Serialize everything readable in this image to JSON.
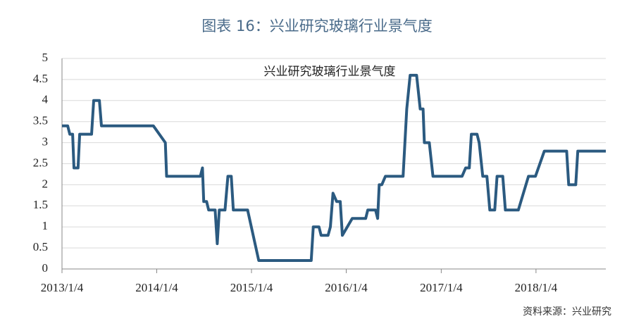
{
  "chart_data": {
    "type": "line",
    "title": "图表 16：兴业研究玻璃行业景气度",
    "source": "资料来源：兴业研究",
    "grid": true,
    "xlim": [
      "2013/1/4",
      "2018/9/30"
    ],
    "xticks": [
      "2013/1/4",
      "2014/1/4",
      "2015/1/4",
      "2016/1/4",
      "2017/1/4",
      "2018/1/4"
    ],
    "ylim": [
      0,
      5
    ],
    "yticks": [
      0,
      0.5,
      1,
      1.5,
      2,
      2.5,
      3,
      3.5,
      4,
      4.5,
      5
    ],
    "x": [
      "2013/1/4",
      "2013/1/26",
      "2013/2/3",
      "2013/2/14",
      "2013/2/19",
      "2013/3/7",
      "2013/3/13",
      "2013/4/28",
      "2013/5/6",
      "2013/5/28",
      "2013/6/5",
      "2013/12/22",
      "2014/2/6",
      "2014/2/11",
      "2014/6/21",
      "2014/6/29",
      "2014/7/4",
      "2014/7/15",
      "2014/7/23",
      "2014/8/17",
      "2014/8/25",
      "2014/9/2",
      "2014/9/24",
      "2014/10/5",
      "2014/10/18",
      "2014/10/26",
      "2014/12/20",
      "2015/2/1",
      "2015/8/22",
      "2015/8/30",
      "2015/9/21",
      "2015/9/29",
      "2015/10/26",
      "2015/11/4",
      "2015/11/14",
      "2015/11/28",
      "2015/12/12",
      "2015/12/20",
      "2016/1/27",
      "2016/3/19",
      "2016/3/27",
      "2016/4/26",
      "2016/5/4",
      "2016/5/10",
      "2016/5/20",
      "2016/6/3",
      "2016/8/10",
      "2016/8/24",
      "2016/9/6",
      "2016/10/1",
      "2016/10/15",
      "2016/10/26",
      "2016/10/31",
      "2016/11/19",
      "2016/12/3",
      "2017/3/25",
      "2017/4/8",
      "2017/4/22",
      "2017/4/30",
      "2017/5/22",
      "2017/5/30",
      "2017/6/13",
      "2017/6/29",
      "2017/7/10",
      "2017/7/29",
      "2017/8/7",
      "2017/8/29",
      "2017/9/8",
      "2017/10/28",
      "2017/12/6",
      "2018/1/2",
      "2018/2/5",
      "2018/5/2",
      "2018/5/10",
      "2018/6/6",
      "2018/6/14",
      "2018/9/30"
    ],
    "series": [
      {
        "name": "兴业研究玻璃行业景气度",
        "color": "#2b5a80",
        "values": [
          3.4,
          3.4,
          3.2,
          3.2,
          2.4,
          2.4,
          3.2,
          3.2,
          4.0,
          4.0,
          3.4,
          3.4,
          3.0,
          2.2,
          2.2,
          2.4,
          1.6,
          1.6,
          1.4,
          1.4,
          0.6,
          1.4,
          1.4,
          2.2,
          2.2,
          1.4,
          1.4,
          0.2,
          0.2,
          1.0,
          1.0,
          0.8,
          0.8,
          1.0,
          1.8,
          1.6,
          1.6,
          0.8,
          1.2,
          1.2,
          1.4,
          1.4,
          1.2,
          2.0,
          2.0,
          2.2,
          2.2,
          3.8,
          4.6,
          4.6,
          3.8,
          3.8,
          3.0,
          3.0,
          2.2,
          2.2,
          2.4,
          2.4,
          3.2,
          3.2,
          3.0,
          2.2,
          2.2,
          1.4,
          1.4,
          2.2,
          2.2,
          1.4,
          1.4,
          2.2,
          2.2,
          2.8,
          2.8,
          2.0,
          2.0,
          2.8,
          2.8
        ]
      }
    ]
  }
}
